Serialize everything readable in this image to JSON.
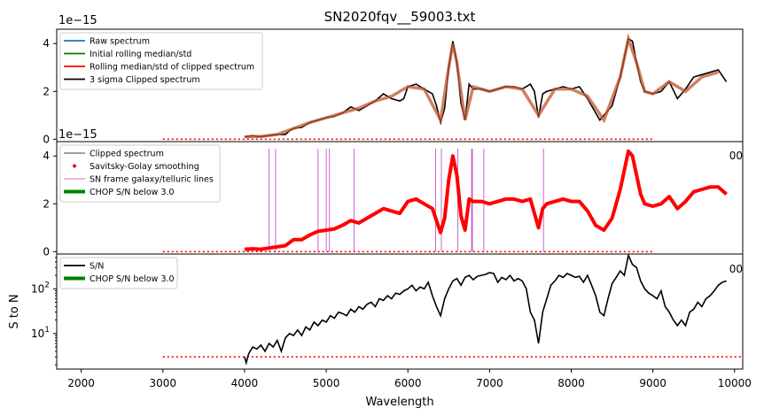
{
  "figure": {
    "title": "SN2020fqv__59003.txt",
    "xlabel": "Wavelength",
    "xlim": [
      1700,
      10100
    ],
    "xticks": [
      2000,
      3000,
      4000,
      5000,
      6000,
      7000,
      8000,
      9000,
      10000
    ],
    "ylabel_bottom": "S to N",
    "offset_text": "1e−15",
    "partial_label_right": "00"
  },
  "chart_data": [
    {
      "type": "line",
      "title": "SN2020fqv__59003.txt",
      "ylim": [
        -0.1,
        4.6
      ],
      "yticks": [
        0,
        2,
        4
      ],
      "y_multiplier": "1e-15",
      "legend": [
        {
          "label": "Raw spectrum",
          "color": "#1f77b4",
          "style": "line"
        },
        {
          "label": "Initial rolling median/std",
          "color": "#008000",
          "style": "line"
        },
        {
          "label": "Rolling median/std of clipped spectrum",
          "color": "#ff0000",
          "style": "line"
        },
        {
          "label": "3 sigma Clipped spectrum",
          "color": "#000000",
          "style": "line"
        }
      ],
      "series": [
        {
          "name": "3 sigma Clipped spectrum",
          "x": [
            4000,
            4100,
            4200,
            4300,
            4400,
            4500,
            4550,
            4600,
            4700,
            4800,
            4900,
            5000,
            5100,
            5200,
            5300,
            5400,
            5500,
            5600,
            5700,
            5800,
            5900,
            5950,
            6000,
            6100,
            6200,
            6300,
            6350,
            6400,
            6450,
            6500,
            6550,
            6600,
            6650,
            6700,
            6750,
            6800,
            6900,
            7000,
            7100,
            7200,
            7300,
            7400,
            7500,
            7550,
            7600,
            7650,
            7700,
            7800,
            7900,
            8000,
            8100,
            8200,
            8300,
            8350,
            8400,
            8500,
            8600,
            8700,
            8750,
            8800,
            8850,
            8900,
            9000,
            9100,
            9200,
            9300,
            9400,
            9500,
            9600,
            9700,
            9800,
            9900
          ],
          "y": [
            0.1,
            0.15,
            0.1,
            0.15,
            0.2,
            0.2,
            0.35,
            0.45,
            0.5,
            0.7,
            0.8,
            0.9,
            0.95,
            1.1,
            1.35,
            1.2,
            1.4,
            1.6,
            1.9,
            1.7,
            1.6,
            1.7,
            2.2,
            2.3,
            2.1,
            1.9,
            1.4,
            0.7,
            1.3,
            3.0,
            4.1,
            3.2,
            1.5,
            0.8,
            2.3,
            2.1,
            2.1,
            2.0,
            2.1,
            2.2,
            2.2,
            2.1,
            2.3,
            2.0,
            0.9,
            1.9,
            2.0,
            2.1,
            2.2,
            2.1,
            2.2,
            1.7,
            1.1,
            0.8,
            1.0,
            1.4,
            2.6,
            4.2,
            4.1,
            3.2,
            2.4,
            2.0,
            1.9,
            2.0,
            2.4,
            1.7,
            2.1,
            2.6,
            2.7,
            2.8,
            2.9,
            2.4
          ]
        },
        {
          "name": "Rolling median/std of clipped spectrum",
          "x": [
            4000,
            4200,
            4400,
            4600,
            4800,
            5000,
            5200,
            5400,
            5600,
            5800,
            6000,
            6200,
            6400,
            6500,
            6550,
            6600,
            6700,
            6800,
            7000,
            7200,
            7400,
            7600,
            7800,
            8000,
            8200,
            8400,
            8600,
            8700,
            8800,
            8900,
            9000,
            9200,
            9400,
            9600,
            9800
          ],
          "y": [
            0.1,
            0.12,
            0.2,
            0.45,
            0.7,
            0.9,
            1.1,
            1.3,
            1.6,
            1.8,
            2.2,
            2.1,
            0.8,
            3.0,
            4.0,
            3.2,
            0.8,
            2.2,
            2.0,
            2.2,
            2.1,
            1.0,
            2.1,
            2.1,
            1.8,
            0.8,
            2.6,
            4.2,
            3.2,
            2.0,
            1.9,
            2.4,
            2.0,
            2.6,
            2.8
          ]
        }
      ],
      "threshold_line": {
        "x": [
          3000,
          9000
        ],
        "y": 0
      }
    },
    {
      "type": "line",
      "ylim": [
        -0.1,
        4.6
      ],
      "yticks": [
        0,
        2,
        4
      ],
      "y_multiplier": "1e-15",
      "legend": [
        {
          "label": "Clipped spectrum",
          "color": "#000000",
          "style": "thin-line"
        },
        {
          "label": "Savitsky-Golay smoothing",
          "color": "#ff0000",
          "style": "dot"
        },
        {
          "label": "SN frame galaxy/telluric lines",
          "color": "#bf40bf",
          "style": "thin-line"
        },
        {
          "label": "CHOP S/N below 3.0",
          "color": "#008000",
          "style": "thick-line"
        }
      ],
      "vlines_x": [
        4300,
        4380,
        4900,
        5000,
        5040,
        5340,
        6340,
        6410,
        6610,
        6780,
        6790,
        6930,
        7660
      ],
      "series": [
        {
          "name": "Savitsky-Golay smoothing",
          "x": [
            4000,
            4100,
            4200,
            4300,
            4400,
            4500,
            4600,
            4700,
            4800,
            4900,
            5000,
            5100,
            5200,
            5300,
            5400,
            5500,
            5600,
            5700,
            5800,
            5900,
            6000,
            6100,
            6200,
            6300,
            6350,
            6400,
            6450,
            6500,
            6550,
            6600,
            6650,
            6700,
            6750,
            6800,
            6900,
            7000,
            7100,
            7200,
            7300,
            7400,
            7500,
            7600,
            7650,
            7700,
            7800,
            7900,
            8000,
            8100,
            8200,
            8300,
            8400,
            8500,
            8600,
            8700,
            8750,
            8800,
            8850,
            8900,
            9000,
            9100,
            9200,
            9300,
            9400,
            9500,
            9600,
            9700,
            9800,
            9900
          ],
          "y": [
            0.1,
            0.12,
            0.1,
            0.15,
            0.2,
            0.25,
            0.5,
            0.5,
            0.7,
            0.85,
            0.9,
            0.95,
            1.1,
            1.3,
            1.2,
            1.4,
            1.6,
            1.8,
            1.7,
            1.6,
            2.1,
            2.2,
            2.0,
            1.8,
            1.3,
            0.8,
            1.4,
            3.0,
            4.0,
            3.2,
            1.5,
            0.9,
            2.2,
            2.1,
            2.1,
            2.0,
            2.1,
            2.2,
            2.2,
            2.1,
            2.2,
            1.0,
            1.8,
            2.0,
            2.1,
            2.2,
            2.1,
            2.1,
            1.7,
            1.1,
            0.9,
            1.4,
            2.6,
            4.2,
            4.0,
            3.2,
            2.4,
            2.0,
            1.9,
            2.0,
            2.3,
            1.8,
            2.1,
            2.5,
            2.6,
            2.7,
            2.7,
            2.4
          ]
        }
      ],
      "threshold_line": {
        "x": [
          3000,
          9000
        ],
        "y": 0
      }
    },
    {
      "type": "line",
      "ylabel": "S to N",
      "yscale": "log",
      "ylim": [
        1.6,
        600
      ],
      "yticks": [
        10,
        100
      ],
      "legend": [
        {
          "label": "S/N",
          "color": "#000000",
          "style": "line"
        },
        {
          "label": "CHOP S/N below 3.0",
          "color": "#008000",
          "style": "thick-line"
        }
      ],
      "series": [
        {
          "name": "S/N",
          "x": [
            4000,
            4020,
            4050,
            4100,
            4150,
            4200,
            4250,
            4300,
            4350,
            4400,
            4450,
            4500,
            4550,
            4600,
            4650,
            4700,
            4750,
            4800,
            4850,
            4900,
            4950,
            5000,
            5050,
            5100,
            5150,
            5200,
            5250,
            5300,
            5350,
            5400,
            5450,
            5500,
            5550,
            5600,
            5650,
            5700,
            5750,
            5800,
            5850,
            5900,
            5950,
            6000,
            6050,
            6100,
            6150,
            6200,
            6250,
            6300,
            6350,
            6400,
            6450,
            6500,
            6550,
            6600,
            6650,
            6700,
            6750,
            6800,
            6850,
            6900,
            6950,
            7000,
            7050,
            7100,
            7150,
            7200,
            7250,
            7300,
            7350,
            7400,
            7450,
            7500,
            7550,
            7600,
            7650,
            7700,
            7750,
            7800,
            7850,
            7900,
            7950,
            8000,
            8050,
            8100,
            8150,
            8200,
            8250,
            8300,
            8350,
            8400,
            8450,
            8500,
            8550,
            8600,
            8650,
            8700,
            8750,
            8800,
            8850,
            8900,
            8950,
            9000,
            9050,
            9100,
            9150,
            9200,
            9250,
            9300,
            9350,
            9400,
            9450,
            9500,
            9550,
            9600,
            9650,
            9700,
            9750,
            9800,
            9850,
            9900
          ],
          "y": [
            3,
            2.2,
            3.5,
            5,
            4.5,
            5.5,
            4,
            6,
            5,
            7,
            4,
            8,
            10,
            9,
            12,
            9,
            14,
            12,
            18,
            15,
            20,
            18,
            25,
            22,
            30,
            28,
            25,
            35,
            30,
            40,
            35,
            45,
            50,
            40,
            60,
            55,
            70,
            60,
            80,
            75,
            90,
            100,
            120,
            90,
            110,
            100,
            140,
            70,
            40,
            25,
            60,
            100,
            150,
            170,
            120,
            180,
            200,
            160,
            190,
            200,
            210,
            230,
            220,
            140,
            180,
            160,
            200,
            150,
            170,
            150,
            100,
            30,
            20,
            6,
            30,
            60,
            120,
            150,
            200,
            180,
            220,
            200,
            180,
            190,
            140,
            200,
            120,
            70,
            30,
            25,
            60,
            130,
            180,
            250,
            200,
            560,
            350,
            300,
            150,
            100,
            80,
            70,
            60,
            90,
            40,
            30,
            20,
            15,
            20,
            15,
            30,
            35,
            50,
            40,
            60,
            70,
            90,
            120,
            140,
            150
          ]
        }
      ],
      "threshold_line": {
        "x": [
          3000,
          10100
        ],
        "y": 3.0
      }
    }
  ]
}
